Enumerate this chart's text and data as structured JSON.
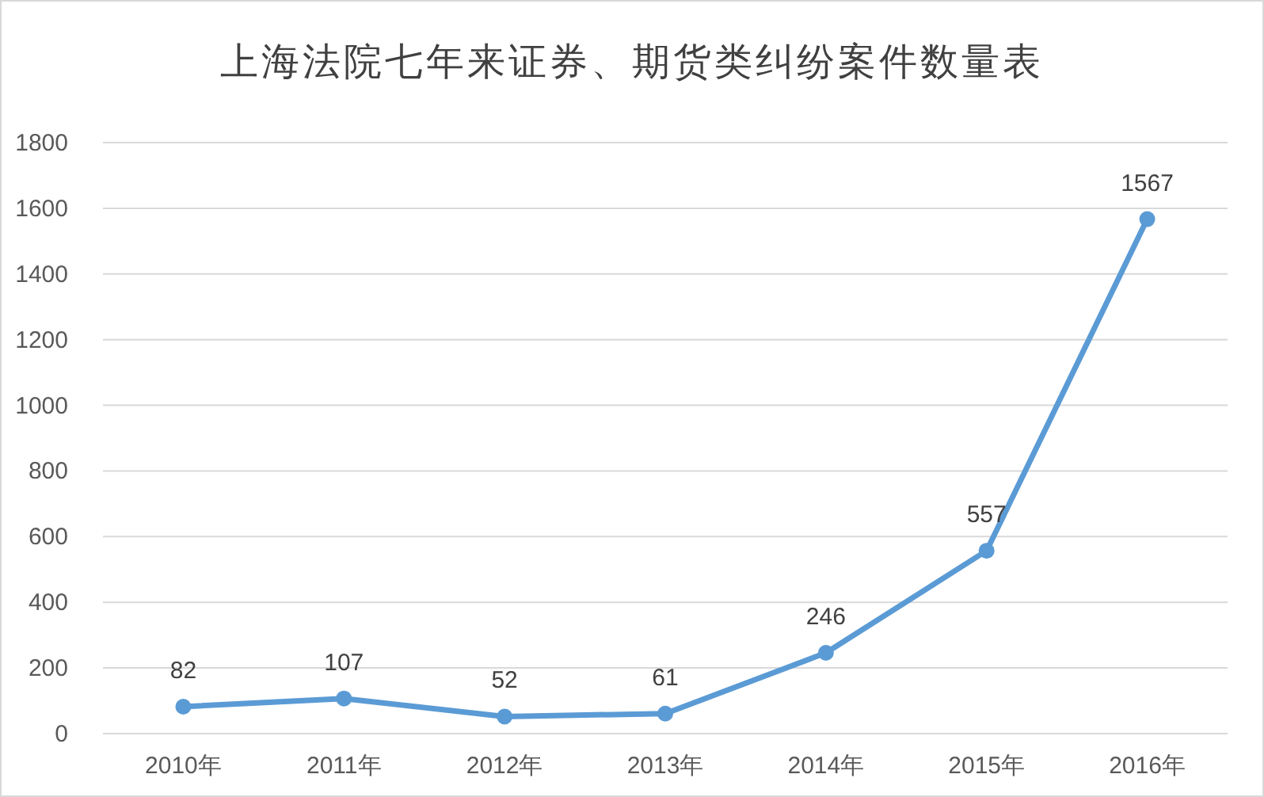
{
  "chart_data": {
    "type": "line",
    "title": "上海法院七年来证券、期货类纠纷案件数量表",
    "categories": [
      "2010年",
      "2011年",
      "2012年",
      "2013年",
      "2014年",
      "2015年",
      "2016年"
    ],
    "series": [
      {
        "color": "#5b9bd5",
        "values": [
          82,
          107,
          52,
          61,
          246,
          557,
          1567
        ]
      }
    ],
    "ylim": [
      0,
      1800
    ],
    "yticks": [
      0,
      200,
      400,
      600,
      800,
      1000,
      1200,
      1400,
      1600,
      1800
    ],
    "grid": "y",
    "marker": "circle",
    "line_style": "solid",
    "data_labels": true
  }
}
